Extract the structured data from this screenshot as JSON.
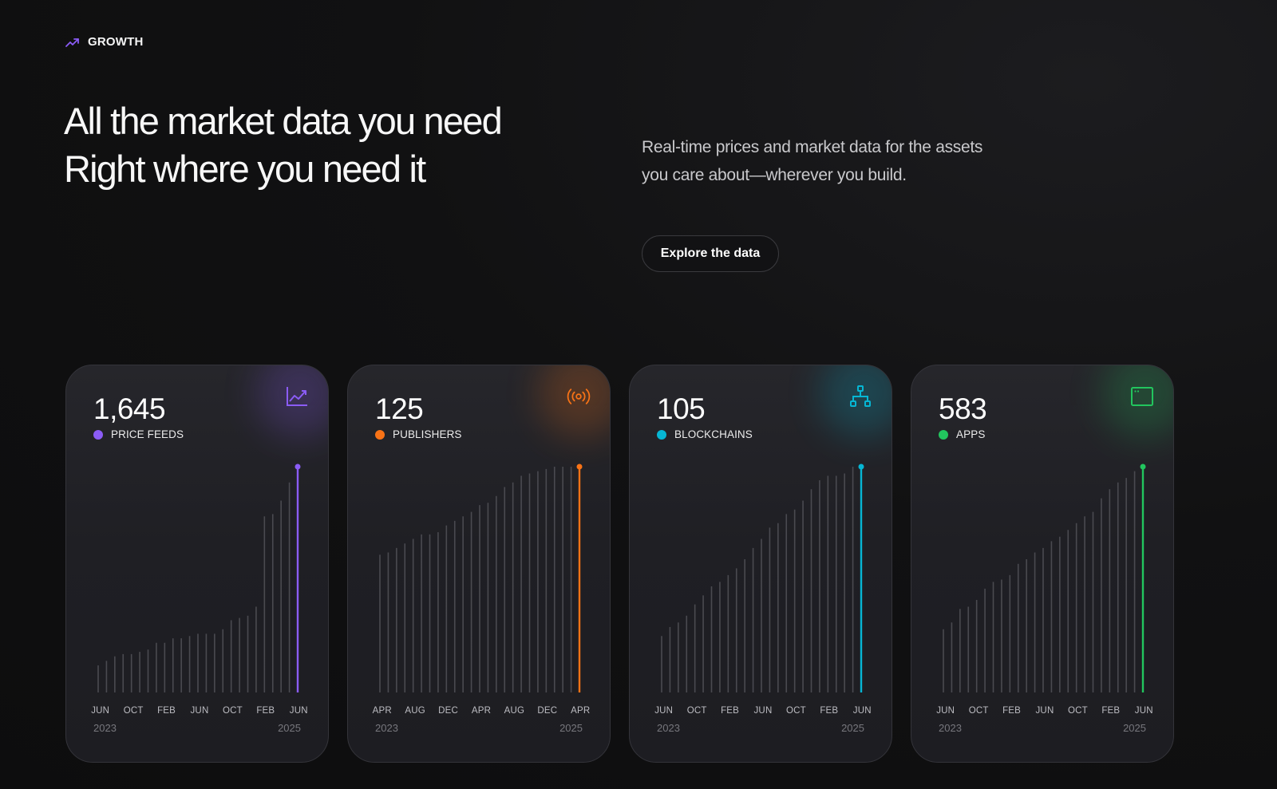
{
  "eyebrow": {
    "label": "GROWTH",
    "icon": "trend-up-icon",
    "icon_color": "#8b5cf6"
  },
  "headline": {
    "line1": "All the market data you need",
    "line2": "Right where you need it"
  },
  "description": "Real-time prices and market data for the assets you care about—wherever you build.",
  "cta": {
    "label": "Explore the data"
  },
  "cards": [
    {
      "value": "1,645",
      "label": "PRICE FEEDS",
      "color": "#8b5cf6",
      "icon": "chart-line-icon",
      "ticks": [
        "JUN",
        "OCT",
        "FEB",
        "JUN",
        "OCT",
        "FEB",
        "JUN"
      ],
      "year_start": "2023",
      "year_end": "2025",
      "series": [
        0.12,
        0.14,
        0.16,
        0.17,
        0.17,
        0.18,
        0.19,
        0.22,
        0.22,
        0.24,
        0.24,
        0.25,
        0.26,
        0.26,
        0.26,
        0.28,
        0.32,
        0.33,
        0.34,
        0.38,
        0.78,
        0.79,
        0.85,
        0.93,
        1.0
      ]
    },
    {
      "value": "125",
      "label": "PUBLISHERS",
      "color": "#f97316",
      "icon": "broadcast-icon",
      "ticks": [
        "APR",
        "AUG",
        "DEC",
        "APR",
        "AUG",
        "DEC",
        "APR"
      ],
      "year_start": "2023",
      "year_end": "2025",
      "series": [
        0.61,
        0.62,
        0.64,
        0.66,
        0.68,
        0.7,
        0.7,
        0.71,
        0.74,
        0.76,
        0.78,
        0.8,
        0.83,
        0.84,
        0.87,
        0.91,
        0.93,
        0.96,
        0.97,
        0.98,
        0.99,
        1.0,
        1.0,
        1.0,
        1.0
      ]
    },
    {
      "value": "105",
      "label": "BLOCKCHAINS",
      "color": "#06b6d4",
      "icon": "network-icon",
      "ticks": [
        "JUN",
        "OCT",
        "FEB",
        "JUN",
        "OCT",
        "FEB",
        "JUN"
      ],
      "year_start": "2023",
      "year_end": "2025",
      "series": [
        0.25,
        0.29,
        0.31,
        0.34,
        0.39,
        0.43,
        0.47,
        0.49,
        0.52,
        0.55,
        0.59,
        0.64,
        0.68,
        0.73,
        0.75,
        0.79,
        0.81,
        0.85,
        0.9,
        0.94,
        0.96,
        0.96,
        0.97,
        1.0,
        1.0
      ]
    },
    {
      "value": "583",
      "label": "APPS",
      "color": "#22c55e",
      "icon": "window-icon",
      "ticks": [
        "JUN",
        "OCT",
        "FEB",
        "JUN",
        "OCT",
        "FEB",
        "JUN"
      ],
      "year_start": "2023",
      "year_end": "2025",
      "series": [
        0.28,
        0.31,
        0.37,
        0.38,
        0.41,
        0.46,
        0.49,
        0.5,
        0.52,
        0.57,
        0.59,
        0.62,
        0.64,
        0.67,
        0.69,
        0.72,
        0.75,
        0.78,
        0.8,
        0.86,
        0.9,
        0.93,
        0.95,
        0.98,
        1.0
      ]
    }
  ]
}
